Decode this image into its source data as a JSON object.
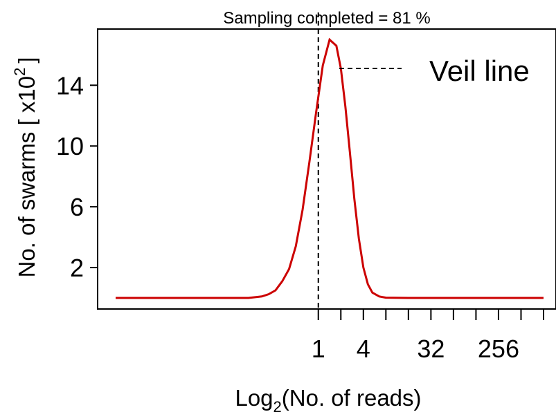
{
  "chart_data": {
    "type": "line",
    "title": "Sampling completed =  81 %",
    "ylabel_main": "No. of swarms [ x10",
    "ylabel_exp": "2",
    "ylabel_close": "]",
    "xlabel_main": "Log",
    "xlabel_sub": "2",
    "xlabel_rest": "(No. of reads)",
    "annotation": "Veil line",
    "xlim": [
      -9,
      10
    ],
    "ylim": [
      0,
      17.7
    ],
    "y_ticks": [
      2,
      6,
      10,
      14
    ],
    "y_tick_labels": [
      "2",
      "6",
      "10",
      "14"
    ],
    "x_ticks": [
      0,
      1,
      2,
      3,
      4,
      5,
      6,
      7,
      8,
      9,
      10
    ],
    "x_tick_labels": [
      {
        "at": 0,
        "label": "1"
      },
      {
        "at": 2,
        "label": "4"
      },
      {
        "at": 5,
        "label": "32"
      },
      {
        "at": 8,
        "label": "256"
      }
    ],
    "veil_line_x": 0,
    "series": [
      {
        "color": "#cc0000",
        "x": [
          -9,
          -3.1,
          -2.8,
          -2.5,
          -2.2,
          -1.9,
          -1.6,
          -1.3,
          -1.0,
          -0.7,
          -0.4,
          -0.1,
          0.2,
          0.5,
          0.8,
          1.0,
          1.2,
          1.4,
          1.6,
          1.8,
          2.0,
          2.2,
          2.4,
          2.7,
          3.0,
          4.0,
          10
        ],
        "y": [
          0,
          0,
          0.05,
          0.1,
          0.25,
          0.5,
          1.1,
          1.9,
          3.4,
          5.8,
          8.9,
          12.2,
          15.3,
          17.0,
          16.6,
          15.1,
          12.6,
          9.6,
          6.5,
          3.9,
          2.0,
          0.9,
          0.35,
          0.1,
          0.02,
          0,
          0
        ]
      }
    ]
  }
}
